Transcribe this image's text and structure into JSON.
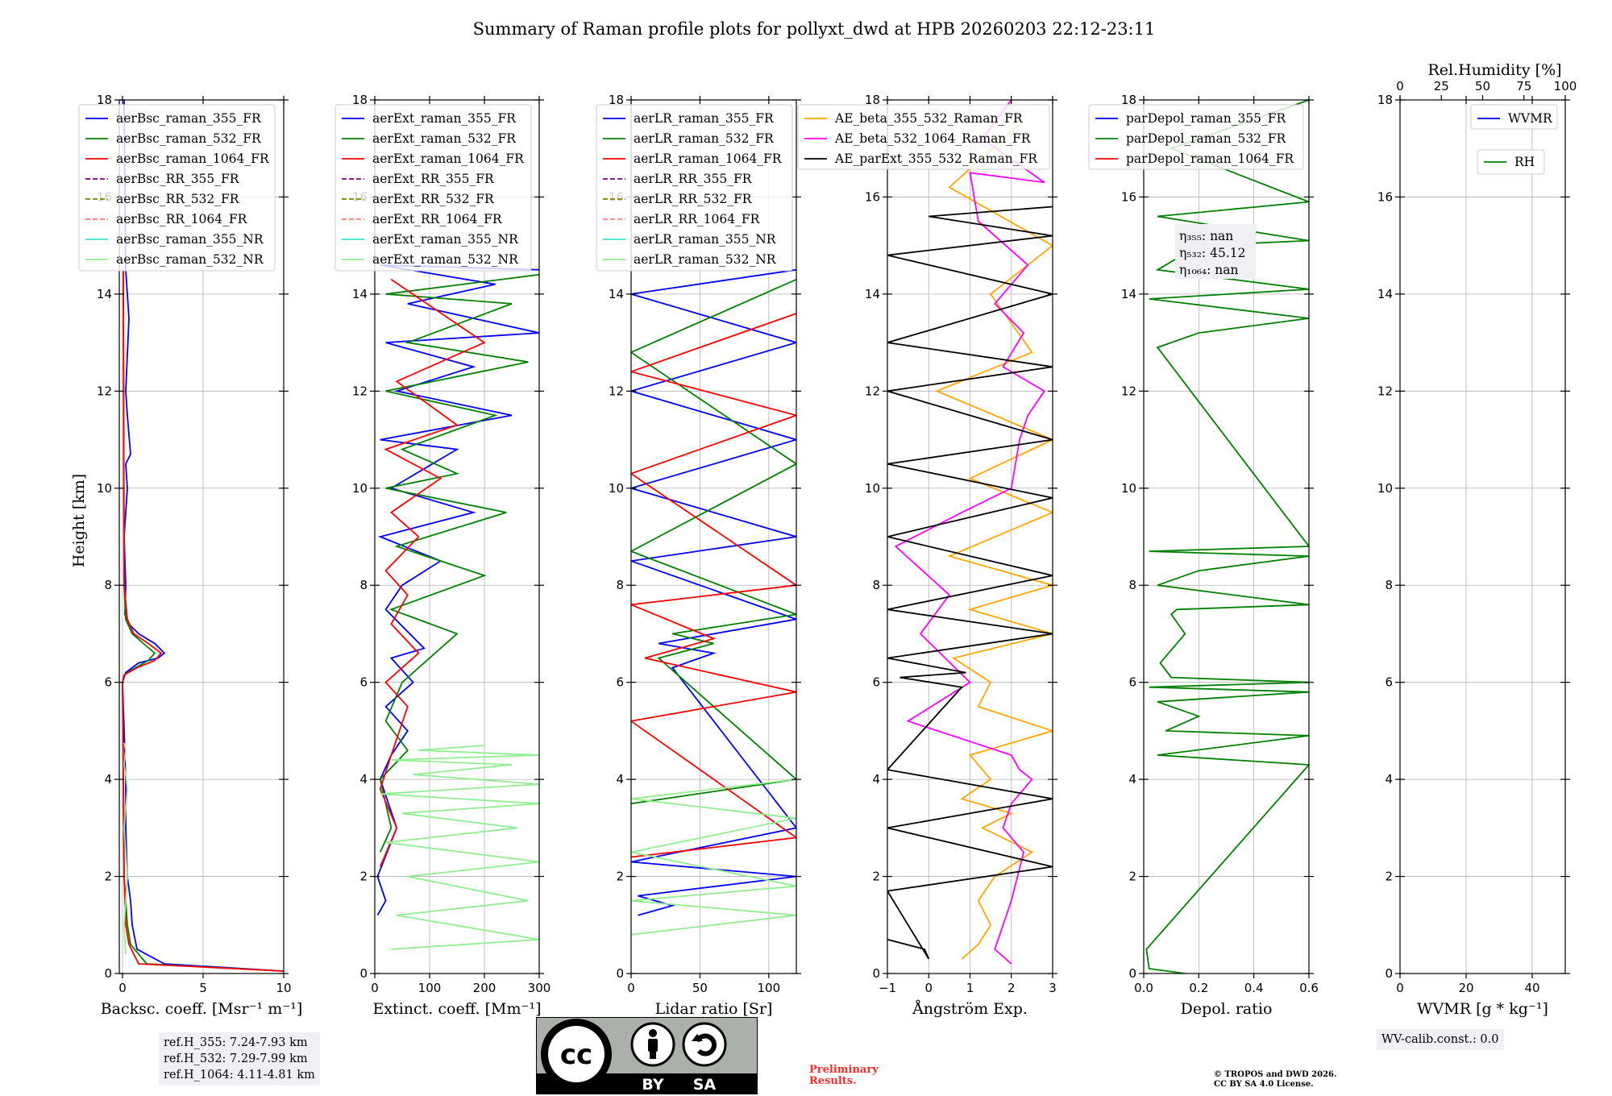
{
  "title": "Summary of Raman profile plots for pollyxt_dwd at HPB 20260203 22:12-23:11",
  "ylabel": "Height [km]",
  "chart_data": [
    {
      "type": "line",
      "id": "bsc",
      "xlabel": "Backsc. coeff. [Msr⁻¹ m⁻¹]",
      "xlim": [
        -0.2,
        10
      ],
      "ylim": [
        0,
        18
      ],
      "xticks": [
        0,
        5,
        10
      ],
      "yticks": [
        0,
        2,
        4,
        6,
        8,
        10,
        12,
        14,
        16,
        18
      ],
      "legend": [
        "aerBsc_raman_355_FR",
        "aerBsc_raman_532_FR",
        "aerBsc_raman_1064_FR",
        "aerBsc_RR_355_FR",
        "aerBsc_RR_532_FR",
        "aerBsc_RR_1064_FR",
        "aerBsc_raman_355_NR",
        "aerBsc_raman_532_NR"
      ],
      "series": [
        {
          "name": "aerBsc_raman_355_FR",
          "color": "#0000ff",
          "dash": "",
          "x": [
            10,
            2.6,
            0.9,
            0.6,
            0.5,
            0.3,
            0.2,
            0.2,
            0.1,
            0.0,
            0.1,
            0.2,
            1.0,
            2.2,
            2.6,
            2.0,
            1.0,
            0.4,
            0.15,
            0.2,
            0.1,
            0.3,
            0.2,
            0.5,
            0.3,
            0.2,
            0.4,
            0.2,
            0.1
          ],
          "y": [
            0.05,
            0.2,
            0.5,
            1.0,
            1.5,
            2.0,
            3.0,
            4.0,
            5.0,
            6.0,
            6.1,
            6.2,
            6.4,
            6.5,
            6.6,
            6.8,
            7.0,
            7.2,
            7.4,
            8.0,
            9.0,
            10.0,
            10.5,
            10.7,
            11.5,
            12.0,
            13.5,
            14.5,
            18.0
          ]
        },
        {
          "name": "aerBsc_raman_532_FR",
          "color": "#008000",
          "dash": "",
          "x": [
            10,
            1.5,
            0.5,
            0.3,
            0.1,
            0.0,
            0.1,
            0.8,
            1.6,
            2.0,
            1.3,
            0.6,
            0.2,
            0.1,
            0.05
          ],
          "y": [
            0.05,
            0.2,
            0.6,
            1.0,
            2.0,
            6.0,
            6.15,
            6.3,
            6.45,
            6.6,
            6.8,
            7.0,
            7.3,
            8.0,
            14.5
          ]
        },
        {
          "name": "aerBsc_raman_1064_FR",
          "color": "#ff0000",
          "dash": "",
          "x": [
            10,
            1.0,
            0.4,
            0.2,
            0.1,
            0.0,
            0.1,
            0.9,
            2.0,
            2.4,
            1.6,
            0.7,
            0.3,
            0.1,
            0.05
          ],
          "y": [
            0.05,
            0.2,
            0.6,
            1.0,
            2.0,
            6.0,
            6.15,
            6.3,
            6.45,
            6.6,
            6.8,
            7.0,
            7.3,
            8.0,
            14.5
          ]
        },
        {
          "name": "aerBsc_raman_532_NR",
          "color": "#90ee90",
          "dash": "",
          "x": [
            0.2,
            0.1,
            0.3,
            0.1,
            0.3,
            0.2,
            0.1,
            0.2,
            0.1
          ],
          "y": [
            0.4,
            1.0,
            2.0,
            3.0,
            3.8,
            4.1,
            4.3,
            4.6,
            4.75
          ]
        }
      ]
    },
    {
      "type": "line",
      "id": "ext",
      "xlabel": "Extinct. coeff. [Mm⁻¹]",
      "xlim": [
        0,
        300
      ],
      "ylim": [
        0,
        18
      ],
      "xticks": [
        0,
        100,
        200,
        300
      ],
      "yticks": [
        0,
        2,
        4,
        6,
        8,
        10,
        12,
        14,
        16,
        18
      ],
      "legend": [
        "aerExt_raman_355_FR",
        "aerExt_raman_532_FR",
        "aerExt_raman_1064_FR",
        "aerExt_RR_355_FR",
        "aerExt_RR_532_FR",
        "aerExt_RR_1064_FR",
        "aerExt_raman_355_NR",
        "aerExt_raman_532_NR"
      ],
      "series": [
        {
          "name": "aerExt_raman_355_FR",
          "color": "#0000ff",
          "dash": "",
          "x": [
            5,
            20,
            5,
            40,
            10,
            30,
            60,
            20,
            70,
            30,
            90,
            20,
            50,
            120,
            10,
            180,
            30,
            150,
            10,
            250,
            40,
            180,
            20,
            300,
            60,
            220,
            10,
            300
          ],
          "y": [
            1.2,
            1.5,
            2.0,
            3.0,
            4.0,
            4.5,
            5.0,
            5.5,
            6.0,
            6.5,
            6.7,
            7.5,
            8.0,
            8.5,
            9.0,
            9.5,
            10.0,
            10.8,
            11.0,
            11.5,
            12.0,
            12.5,
            13.0,
            13.2,
            13.8,
            14.2,
            14.6,
            14.5
          ]
        },
        {
          "name": "aerExt_raman_532_FR",
          "color": "#008000",
          "dash": "",
          "x": [
            10,
            30,
            10,
            60,
            20,
            50,
            150,
            30,
            200,
            40,
            240,
            20,
            150,
            50,
            220,
            20,
            280,
            60,
            250,
            20,
            300
          ],
          "y": [
            2.5,
            3.0,
            4.0,
            4.6,
            5.2,
            6.0,
            7.0,
            7.5,
            8.2,
            8.8,
            9.5,
            10.0,
            10.3,
            10.8,
            11.5,
            12.0,
            12.6,
            13.0,
            13.8,
            14.0,
            14.4
          ]
        },
        {
          "name": "aerExt_raman_1064_FR",
          "color": "#ff0000",
          "dash": "",
          "x": [
            10,
            40,
            10,
            30,
            60,
            20,
            80,
            30,
            60,
            20,
            80,
            30,
            120,
            20,
            150,
            40,
            200,
            30
          ],
          "y": [
            2.2,
            3.0,
            3.8,
            4.5,
            5.5,
            6.0,
            6.6,
            7.2,
            7.8,
            8.3,
            9.0,
            9.5,
            10.2,
            10.8,
            11.3,
            12.2,
            13.0,
            14.3
          ]
        },
        {
          "name": "aerExt_raman_532_NR",
          "color": "#90ee90",
          "dash": "",
          "x": [
            30,
            300,
            40,
            280,
            60,
            300,
            20,
            260,
            50,
            300,
            10,
            300,
            70,
            250,
            30,
            300,
            80,
            200
          ],
          "y": [
            0.5,
            0.7,
            1.2,
            1.5,
            2.0,
            2.3,
            2.7,
            3.0,
            3.3,
            3.5,
            3.7,
            3.9,
            4.1,
            4.3,
            4.4,
            4.5,
            4.6,
            4.7
          ]
        }
      ]
    },
    {
      "type": "line",
      "id": "lr",
      "xlabel": "Lidar ratio [Sr]",
      "xlim": [
        0,
        120
      ],
      "ylim": [
        0,
        18
      ],
      "xticks": [
        0,
        50,
        100
      ],
      "yticks": [
        0,
        2,
        4,
        6,
        8,
        10,
        12,
        14,
        16,
        18
      ],
      "legend": [
        "aerLR_raman_355_FR",
        "aerLR_raman_532_FR",
        "aerLR_raman_1064_FR",
        "aerLR_RR_355_FR",
        "aerLR_RR_532_FR",
        "aerLR_RR_1064_FR",
        "aerLR_raman_355_NR",
        "aerLR_raman_532_NR"
      ],
      "series": [
        {
          "name": "aerLR_raman_355_FR",
          "color": "#0000ff",
          "dash": "",
          "x": [
            5,
            30,
            5,
            120,
            0,
            120,
            30,
            60,
            20,
            120,
            0,
            120,
            0,
            120,
            0,
            120,
            0,
            120
          ],
          "y": [
            1.2,
            1.4,
            1.6,
            2.0,
            2.3,
            3.0,
            6.3,
            6.6,
            6.8,
            7.3,
            8.5,
            9.0,
            10.0,
            11.0,
            12.0,
            13.0,
            14.0,
            14.5
          ]
        },
        {
          "name": "aerLR_raman_532_FR",
          "color": "#008000",
          "dash": "",
          "x": [
            0,
            120,
            20,
            60,
            30,
            120,
            0,
            120,
            0,
            120
          ],
          "y": [
            3.5,
            4.0,
            6.5,
            6.8,
            7.0,
            7.4,
            8.7,
            10.5,
            12.8,
            14.3
          ]
        },
        {
          "name": "aerLR_raman_1064_FR",
          "color": "#ff0000",
          "dash": "",
          "x": [
            0,
            120,
            0,
            120,
            10,
            60,
            0,
            120,
            0,
            120,
            0,
            120
          ],
          "y": [
            2.4,
            2.8,
            5.2,
            5.8,
            6.5,
            6.9,
            7.6,
            8.0,
            10.3,
            11.5,
            12.4,
            13.6
          ]
        },
        {
          "name": "aerLR_raman_532_NR",
          "color": "#90ee90",
          "dash": "",
          "x": [
            0,
            120,
            0,
            120,
            0,
            120,
            0,
            120
          ],
          "y": [
            0.8,
            1.2,
            1.5,
            1.8,
            2.5,
            3.2,
            3.6,
            4.0
          ]
        }
      ]
    },
    {
      "type": "line",
      "id": "ae",
      "xlabel": "Ångström Exp.",
      "xlim": [
        -1,
        3
      ],
      "ylim": [
        0,
        18
      ],
      "xticks": [
        -1,
        0,
        1,
        2,
        3
      ],
      "yticks": [
        0,
        2,
        4,
        6,
        8,
        10,
        12,
        14,
        16,
        18
      ],
      "legend": [
        "AE_beta_355_532_Raman_FR",
        "AE_beta_532_1064_Raman_FR",
        "AE_parExt_355_532_Raman_FR"
      ],
      "series": [
        {
          "name": "AE_beta_355_532_Raman_FR",
          "color": "#ffa500",
          "dash": "",
          "x": [
            0.8,
            1.2,
            1.5,
            1.2,
            1.6,
            2.5,
            1.3,
            2.0,
            0.8,
            1.5,
            1.0,
            3.0,
            1.2,
            1.5,
            0.6,
            3.0,
            1.0,
            3.0,
            0.5,
            3.0,
            1.0,
            3.0,
            0.2,
            2.5,
            1.5,
            3.0,
            0.5,
            2.2
          ],
          "y": [
            0.3,
            0.6,
            1.0,
            1.5,
            2.0,
            2.5,
            3.0,
            3.3,
            3.6,
            4.0,
            4.5,
            5.0,
            5.5,
            6.0,
            6.5,
            7.0,
            7.5,
            8.0,
            8.6,
            9.5,
            10.2,
            11.0,
            12.0,
            12.8,
            14.0,
            15.0,
            16.2,
            17.5
          ]
        },
        {
          "name": "AE_beta_532_1064_Raman_FR",
          "color": "#ff00ff",
          "dash": "",
          "x": [
            2.0,
            1.6,
            2.0,
            2.3,
            1.8,
            2.0,
            2.5,
            2.2,
            2.0,
            -0.5,
            1.0,
            -0.2,
            0.5,
            -0.8,
            0.8,
            2.0,
            2.2,
            2.4,
            2.8,
            1.8,
            2.3,
            1.6,
            2.4,
            1.2,
            1.0,
            2.8,
            1.3,
            2.0
          ],
          "y": [
            0.2,
            0.5,
            1.5,
            2.5,
            3.0,
            3.5,
            4.0,
            4.2,
            4.5,
            5.2,
            6.0,
            7.0,
            7.8,
            8.8,
            9.5,
            10.0,
            11.0,
            11.5,
            12.0,
            12.5,
            13.2,
            13.8,
            14.6,
            15.5,
            16.5,
            16.3,
            17.2,
            18.0
          ]
        },
        {
          "name": "AE_parExt_355_532_Raman_FR",
          "color": "#000000",
          "dash": "",
          "x": [
            -1.0,
            -0.1,
            0.0,
            -1.0,
            3.0,
            -1.0,
            3.0,
            -1.0,
            0.8,
            -0.7,
            0.9,
            -1.0,
            3.0,
            -1.0,
            3.0,
            -1.0,
            3.0,
            -1.0,
            3.0,
            -1.0,
            3.0,
            -1.0,
            3.0,
            -1.0,
            3.0,
            0.0,
            3.0
          ],
          "y": [
            0.7,
            0.5,
            0.3,
            1.7,
            2.2,
            3.0,
            3.6,
            4.2,
            5.9,
            6.1,
            6.2,
            6.5,
            7.0,
            7.5,
            8.2,
            9.0,
            9.8,
            10.5,
            11.0,
            12.0,
            12.5,
            13.0,
            14.0,
            14.8,
            15.2,
            15.6,
            15.8
          ]
        }
      ]
    },
    {
      "type": "line",
      "id": "depol",
      "xlabel": "Depol. ratio",
      "xlim": [
        0,
        0.6
      ],
      "ylim": [
        0,
        18
      ],
      "xticks": [
        0.0,
        0.2,
        0.4,
        0.6
      ],
      "yticks": [
        0,
        2,
        4,
        6,
        8,
        10,
        12,
        14,
        16,
        18
      ],
      "legend": [
        "parDepol_raman_355_FR",
        "parDepol_raman_532_FR",
        "parDepol_raman_1064_FR"
      ],
      "annotations": [
        "η₃₅₅: nan",
        "η₅₃₂: 45.12",
        "η₁₀₆₄: nan"
      ],
      "series": [
        {
          "name": "parDepol_raman_532_FR",
          "color": "#008000",
          "dash": "",
          "x": [
            0.15,
            0.02,
            0.01,
            0.6,
            0.05,
            0.6,
            0.08,
            0.2,
            0.05,
            0.6,
            0.02,
            0.6,
            0.1,
            0.06,
            0.15,
            0.1,
            0.12,
            0.6,
            0.05,
            0.2,
            0.6,
            0.02,
            0.6,
            0.05,
            0.2,
            0.6,
            0.02,
            0.6,
            0.05,
            0.2,
            0.6,
            0.05,
            0.6,
            0.1,
            0.6
          ],
          "y": [
            0.0,
            0.1,
            0.5,
            4.3,
            4.5,
            4.9,
            5.0,
            5.3,
            5.6,
            5.8,
            5.9,
            6.0,
            6.1,
            6.4,
            7.0,
            7.4,
            7.5,
            7.6,
            8.0,
            8.3,
            8.6,
            8.7,
            8.8,
            12.9,
            13.2,
            13.5,
            13.9,
            14.1,
            14.5,
            15.0,
            15.1,
            15.6,
            15.9,
            17.0,
            18.0
          ]
        }
      ]
    },
    {
      "type": "line",
      "id": "wv",
      "xlabel": "WVMR [g * kg⁻¹]",
      "x2label": "Rel.Humidity [%]",
      "xlim": [
        0,
        50
      ],
      "x2lim": [
        0,
        100
      ],
      "ylim": [
        0,
        18
      ],
      "xticks": [
        0,
        20,
        40
      ],
      "x2ticks": [
        0,
        25,
        50,
        75,
        100
      ],
      "yticks": [
        0,
        2,
        4,
        6,
        8,
        10,
        12,
        14,
        16,
        18
      ],
      "legend": [
        "WVMR"
      ],
      "legend2": [
        "RH"
      ],
      "series": []
    }
  ],
  "info": {
    "refh": [
      "ref.H_355: 7.24-7.93 km",
      "ref.H_532: 7.29-7.99 km",
      "ref.H_1064: 4.11-4.81 km"
    ],
    "wv_calib": "WV-calib.const.: 0.0"
  },
  "badge": {
    "cc": "cc",
    "by": "BY",
    "sa": "SA"
  },
  "prelim": [
    "Preliminary",
    "Results."
  ],
  "copyright": [
    "© TROPOS and DWD 2026.",
    "CC BY SA 4.0 License."
  ],
  "legend_colors": {
    "aerBsc_raman_355_FR": "#0000ff",
    "aerBsc_raman_532_FR": "#008000",
    "aerBsc_raman_1064_FR": "#ff0000",
    "aerBsc_RR_355_FR": "#800080",
    "aerBsc_RR_532_FR": "#808000",
    "aerBsc_RR_1064_FR": "#fa8072",
    "aerBsc_raman_355_NR": "#40e0d0",
    "aerBsc_raman_532_NR": "#90ee90"
  }
}
